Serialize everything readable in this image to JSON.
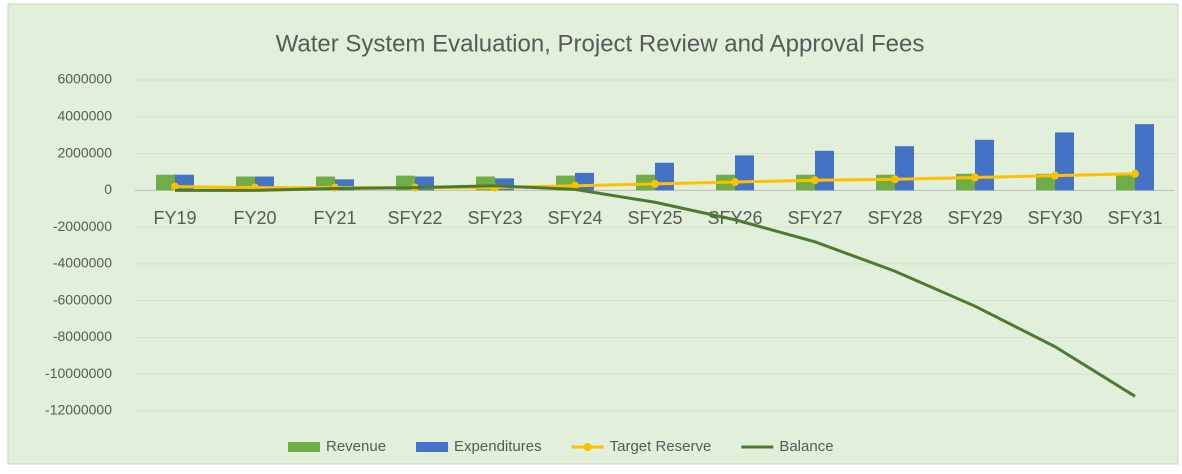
{
  "chart_data": {
    "type": "combo",
    "title": "Water System Evaluation, Project Review and Approval Fees",
    "categories": [
      "FY19",
      "FY20",
      "FY21",
      "SFY22",
      "SFY23",
      "SFY24",
      "SFY25",
      "SFY26",
      "SFY27",
      "SFY28",
      "SFY29",
      "SFY30",
      "SFY31"
    ],
    "series": [
      {
        "name": "Revenue",
        "type": "bar",
        "color": "#70ad47",
        "values": [
          850000,
          750000,
          750000,
          800000,
          750000,
          800000,
          850000,
          850000,
          850000,
          850000,
          900000,
          900000,
          900000
        ]
      },
      {
        "name": "Expenditures",
        "type": "bar",
        "color": "#4472c4",
        "values": [
          850000,
          750000,
          600000,
          750000,
          650000,
          950000,
          1500000,
          1900000,
          2150000,
          2400000,
          2750000,
          3150000,
          3600000
        ]
      },
      {
        "name": "Target Reserve",
        "type": "line",
        "markers": true,
        "color": "#ffc000",
        "values": [
          200000,
          150000,
          150000,
          150000,
          150000,
          250000,
          350000,
          450000,
          550000,
          600000,
          700000,
          800000,
          900000
        ]
      },
      {
        "name": "Balance",
        "type": "line",
        "markers": false,
        "color": "#4e7a2e",
        "values": [
          0,
          0,
          100000,
          150000,
          250000,
          50000,
          -650000,
          -1600000,
          -2800000,
          -4400000,
          -6300000,
          -8500000,
          -11200000
        ]
      }
    ],
    "ylim": [
      -12000000,
      6000000
    ],
    "yticks": [
      6000000,
      4000000,
      2000000,
      0,
      -2000000,
      -4000000,
      -6000000,
      -8000000,
      -10000000,
      -12000000
    ],
    "grid": true,
    "legend": "bottom"
  }
}
